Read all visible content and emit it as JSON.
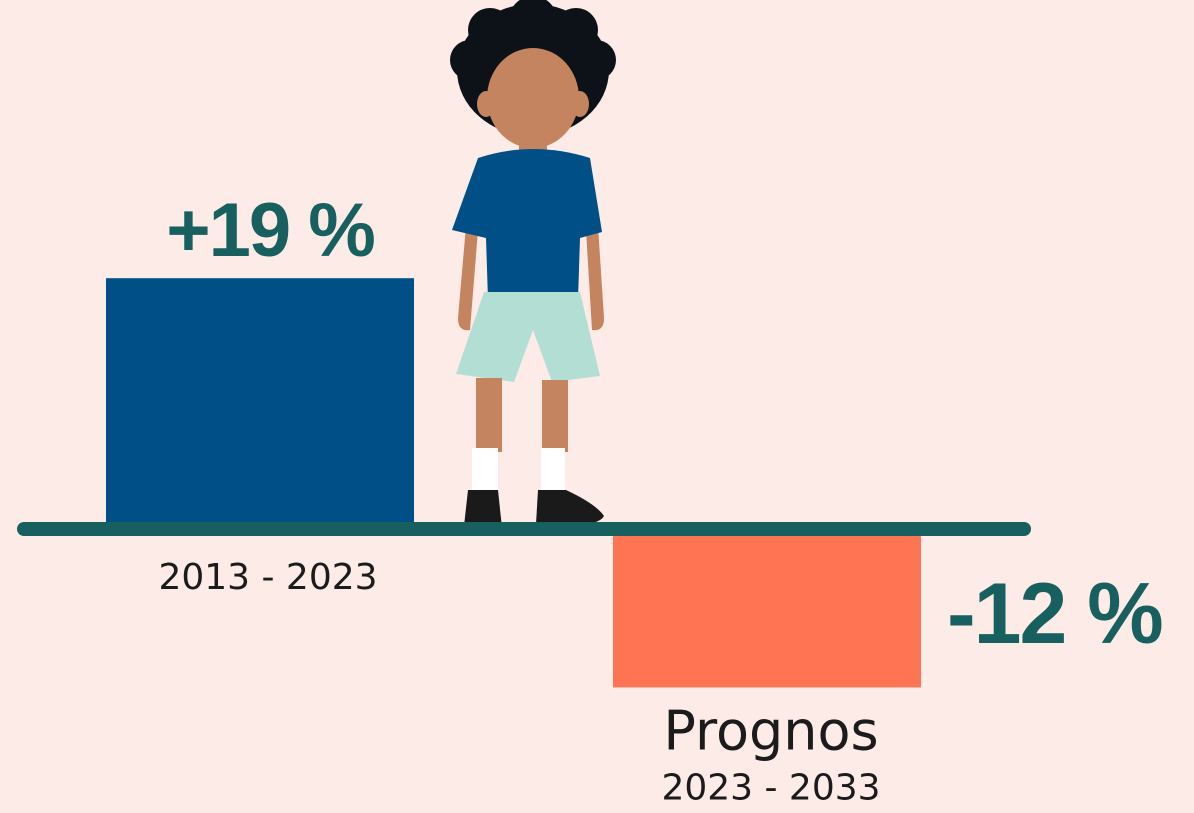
{
  "colors": {
    "background": "#fdebe7",
    "baseline": "#17605f",
    "positive_bar": "#004f86",
    "negative_bar": "#ff7452",
    "value_text": "#17605f"
  },
  "illustration": {
    "icon": "child-standing-icon"
  },
  "chart_data": {
    "type": "bar",
    "categories": [
      "2013 - 2023",
      "2023 - 2033"
    ],
    "values": [
      19,
      -12
    ],
    "data_labels": [
      "+19 %",
      "-12 %"
    ],
    "annotations": [
      "Prognos"
    ],
    "title": "",
    "xlabel": "",
    "ylabel": "",
    "ylim": [
      -15,
      25
    ],
    "grid": false,
    "legend": "none"
  }
}
